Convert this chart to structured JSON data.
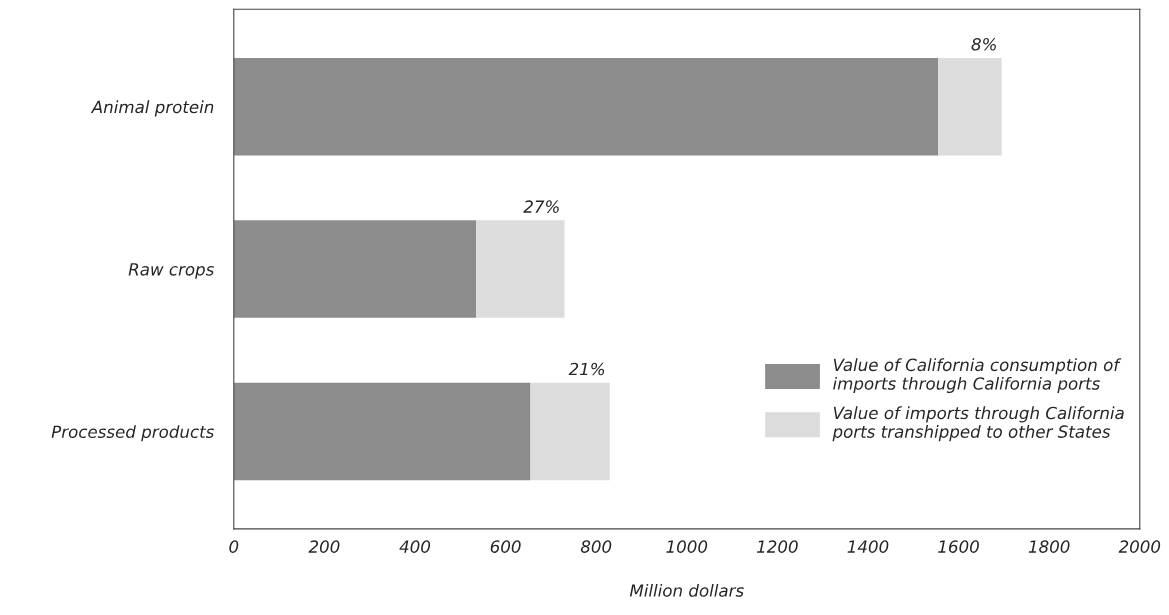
{
  "chart_data": {
    "type": "bar",
    "orientation": "horizontal",
    "stacked": true,
    "categories": [
      "Animal protein",
      "Raw crops",
      "Processed products"
    ],
    "series": [
      {
        "name": "Value of California consumption of imports through California ports",
        "color": "#8c8c8c",
        "values": [
          1555,
          535,
          655
        ]
      },
      {
        "name": "Value of imports through California ports transhipped to other States",
        "color": "#dcdcdc",
        "values": [
          140,
          195,
          175
        ]
      }
    ],
    "annotations": [
      "8%",
      "27%",
      "21%"
    ],
    "xlabel": "Million dollars",
    "xlim": [
      0,
      2000
    ],
    "xticks": [
      0,
      200,
      400,
      600,
      800,
      1000,
      1200,
      1400,
      1600,
      1800,
      2000
    ],
    "grid": false,
    "legend": "bottom right"
  }
}
